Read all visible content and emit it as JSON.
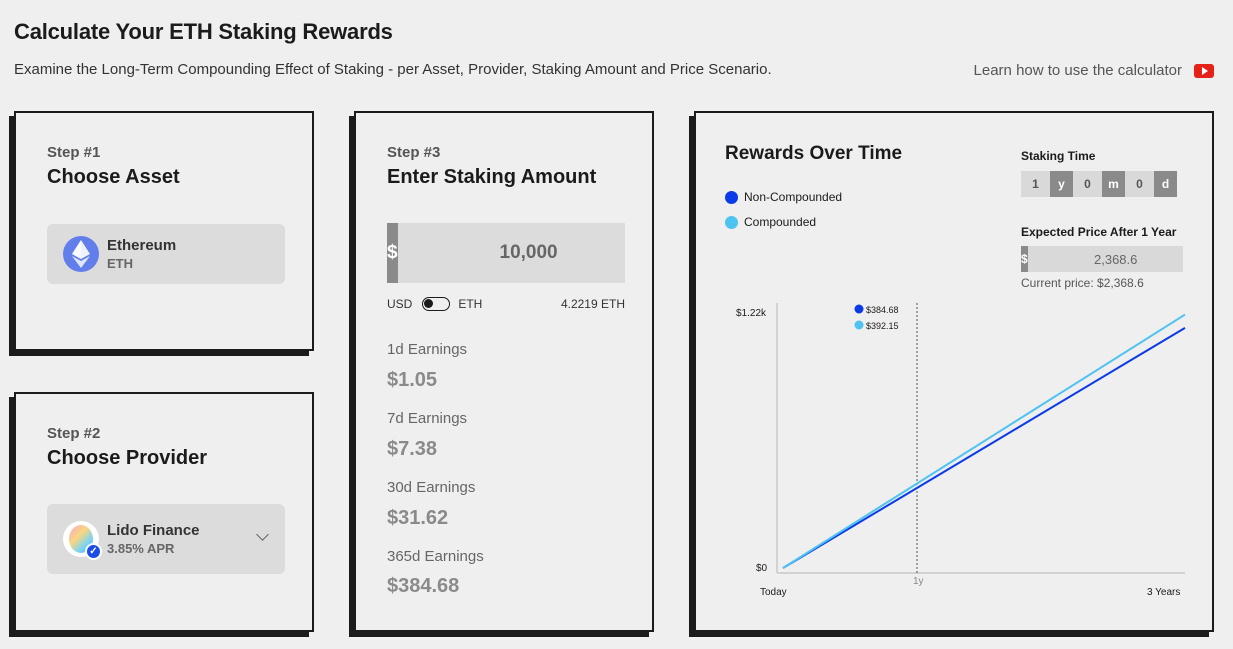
{
  "header": {
    "title": "Calculate Your ETH Staking Rewards",
    "subtitle": "Examine the Long-Term Compounding Effect of Staking - per Asset, Provider, Staking Amount and Price Scenario.",
    "learn_link": "Learn how to use the calculator",
    "learn_icon": "youtube-icon"
  },
  "step1": {
    "step": "Step #1",
    "title": "Choose Asset",
    "asset_name": "Ethereum",
    "asset_symbol": "ETH",
    "asset_icon": "ethereum-icon"
  },
  "step2": {
    "step": "Step #2",
    "title": "Choose Provider",
    "provider_name": "Lido Finance",
    "provider_apr": "3.85% APR",
    "provider_icon": "lido-icon"
  },
  "step3": {
    "step": "Step #3",
    "title": "Enter Staking Amount",
    "currency_symbol": "$",
    "amount": "10,000",
    "unit_left": "USD",
    "unit_right": "ETH",
    "eth_amount": "4.2219 ETH",
    "earnings": [
      {
        "label": "1d Earnings",
        "value": "$1.05"
      },
      {
        "label": "7d Earnings",
        "value": "$7.38"
      },
      {
        "label": "30d Earnings",
        "value": "$31.62"
      },
      {
        "label": "365d Earnings",
        "value": "$384.68"
      }
    ]
  },
  "rewards": {
    "title": "Rewards Over Time",
    "legend": [
      {
        "label": "Non-Compounded",
        "color": "#0b3be8"
      },
      {
        "label": "Compounded",
        "color": "#4fc3f0"
      }
    ],
    "staking_time_label": "Staking Time",
    "staking_time": [
      {
        "value": "1",
        "unit": "y"
      },
      {
        "value": "0",
        "unit": "m"
      },
      {
        "value": "0",
        "unit": "d"
      }
    ],
    "expected_price_label": "Expected Price After 1 Year",
    "price_symbol": "$",
    "expected_price": "2,368.6",
    "current_price": "Current price: $2,368.6"
  },
  "chart_data": {
    "type": "line",
    "x_labels": [
      "Today",
      "1y",
      "3 Years"
    ],
    "y_labels": [
      "$0",
      "$1.22k"
    ],
    "ylim": [
      0,
      1220
    ],
    "x": [
      0,
      3
    ],
    "series": [
      {
        "name": "Non-Compounded",
        "color": "#0b3be8",
        "values": [
          0,
          1140
        ]
      },
      {
        "name": "Compounded",
        "color": "#4fc3f0",
        "values": [
          0,
          1203
        ]
      }
    ],
    "marker": {
      "x": 1,
      "values": [
        "$384.68",
        "$392.15"
      ]
    }
  }
}
